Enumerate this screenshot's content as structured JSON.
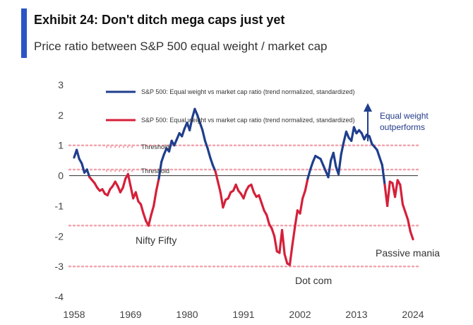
{
  "header": {
    "title": "Exhibit 24: Don't ditch mega caps just yet",
    "subtitle": "Price ratio between S&P 500 equal weight / market cap"
  },
  "colors": {
    "accent": "#2a55c4",
    "blue_series": "#1f3e8c",
    "red_series": "#d5203a",
    "threshold_dots": "#f2a5ae",
    "zero_line": "#444444"
  },
  "chart_data": {
    "type": "line",
    "title": "",
    "xlabel": "",
    "ylabel": "",
    "xlim": [
      1958,
      2024
    ],
    "ylim": [
      -4,
      3
    ],
    "x_ticks": [
      "1958",
      "1969",
      "1980",
      "1991",
      "2002",
      "2013",
      "2024"
    ],
    "y_ticks": [
      "3",
      "2",
      "1",
      "0",
      "-1",
      "-2",
      "-3",
      "-4"
    ],
    "grid": false,
    "legend_position": "top-left",
    "legend": [
      {
        "label": "S&P 500: Equal weight vs market cap ratio (trend normalized, standardized)",
        "style": "blue-line"
      },
      {
        "label": "S&P 500: Equal weight vs market cap ratio (trend normalized, standardized)",
        "style": "red-line"
      },
      {
        "label": "Threshold",
        "style": "dotted"
      },
      {
        "label": "Threshold",
        "style": "dotted"
      }
    ],
    "thresholds": [
      1.0,
      0.2,
      -1.65,
      -3.0
    ],
    "series": [
      {
        "x": [
          1958,
          1958.5,
          1959,
          1959.5,
          1960,
          1960.5,
          1961,
          1961.5,
          1962,
          1962.5,
          1963,
          1963.5,
          1964,
          1964.5,
          1965,
          1965.5,
          1966,
          1966.5,
          1967,
          1967.5,
          1968,
          1968.5,
          1969,
          1969.5,
          1970,
          1970.5,
          1971,
          1971.5,
          1972,
          1972.5,
          1973,
          1973.5,
          1974,
          1974.5,
          1975,
          1975.5,
          1976,
          1976.5,
          1977,
          1977.5,
          1978,
          1978.5,
          1979,
          1979.5,
          1980,
          1980.5,
          1981,
          1981.5,
          1982,
          1982.5,
          1983,
          1983.5,
          1984,
          1984.5,
          1985,
          1985.5,
          1986,
          1986.5,
          1987,
          1987.5,
          1988,
          1988.5,
          1989,
          1989.5,
          1990,
          1990.5,
          1991,
          1991.5,
          1992,
          1992.5,
          1993,
          1993.5,
          1994,
          1994.5,
          1995,
          1995.5,
          1996,
          1996.5,
          1997,
          1997.5,
          1998,
          1998.5,
          1999,
          1999.5,
          2000,
          2000.5,
          2001,
          2001.5,
          2002,
          2002.5,
          2003,
          2003.5,
          2004,
          2004.5,
          2005,
          2005.5,
          2006,
          2006.5,
          2007,
          2007.5,
          2008,
          2008.5,
          2009,
          2009.5,
          2010,
          2010.5,
          2011,
          2011.5,
          2012,
          2012.5,
          2013,
          2013.5,
          2014,
          2014.5,
          2015,
          2015.5,
          2016,
          2016.5,
          2017,
          2017.5,
          2018,
          2018.5,
          2019,
          2019.5,
          2020,
          2020.5,
          2021,
          2021.5,
          2022,
          2022.5,
          2023,
          2023.5,
          2024
        ],
        "y": [
          0.6,
          0.85,
          0.55,
          0.4,
          0.1,
          0.2,
          -0.05,
          -0.15,
          -0.25,
          -0.4,
          -0.5,
          -0.45,
          -0.6,
          -0.65,
          -0.45,
          -0.35,
          -0.2,
          -0.35,
          -0.55,
          -0.4,
          -0.1,
          0.05,
          -0.35,
          -0.75,
          -0.55,
          -0.85,
          -0.95,
          -1.25,
          -1.5,
          -1.65,
          -1.3,
          -1.0,
          -0.5,
          -0.1,
          0.45,
          0.7,
          0.9,
          0.8,
          1.15,
          1.0,
          1.2,
          1.4,
          1.3,
          1.55,
          1.75,
          1.5,
          1.9,
          2.2,
          2.0,
          1.75,
          1.5,
          1.15,
          0.9,
          0.6,
          0.35,
          0.15,
          -0.2,
          -0.55,
          -1.05,
          -0.8,
          -0.75,
          -0.55,
          -0.5,
          -0.3,
          -0.5,
          -0.6,
          -0.75,
          -0.5,
          -0.35,
          -0.3,
          -0.55,
          -0.7,
          -0.65,
          -0.9,
          -1.15,
          -1.3,
          -1.6,
          -1.75,
          -2.0,
          -2.5,
          -2.55,
          -1.8,
          -2.6,
          -2.9,
          -2.95,
          -2.3,
          -1.7,
          -1.15,
          -1.25,
          -0.75,
          -0.5,
          -0.1,
          0.2,
          0.45,
          0.65,
          0.6,
          0.55,
          0.35,
          0.15,
          -0.05,
          0.5,
          0.75,
          0.3,
          0.05,
          0.7,
          1.1,
          1.45,
          1.25,
          1.15,
          1.6,
          1.4,
          1.5,
          1.4,
          1.2,
          1.35,
          1.3,
          1.05,
          0.95,
          0.85,
          0.6,
          0.35,
          -0.3,
          -1.0,
          -0.2,
          -0.25,
          -0.7,
          -0.15,
          -0.3,
          -0.95,
          -1.2,
          -1.45,
          -1.85,
          -2.1
        ]
      }
    ],
    "annotations": [
      {
        "text": "Nifty Fifty",
        "x": 1973,
        "y": -2.0
      },
      {
        "text": "Dot com",
        "x": 2000,
        "y": -3.3
      },
      {
        "text": "Passive mania",
        "x": 2024,
        "y": -2.4
      },
      {
        "text": "Equal weight outperforms",
        "x": 2018,
        "y": 1.8
      }
    ]
  }
}
